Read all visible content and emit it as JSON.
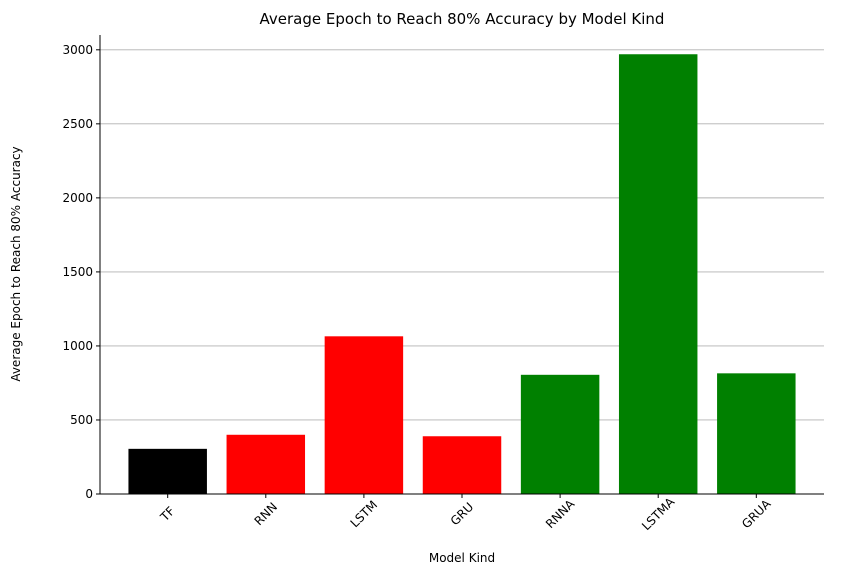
{
  "chart_data": {
    "type": "bar",
    "title": "Average Epoch to Reach 80% Accuracy by Model Kind",
    "xlabel": "Model Kind",
    "ylabel": "Average Epoch to Reach 80% Accuracy",
    "categories": [
      "TF",
      "RNN",
      "LSTM",
      "GRU",
      "RNNA",
      "LSTMA",
      "GRUA"
    ],
    "values": [
      305,
      400,
      1065,
      390,
      805,
      2970,
      815
    ],
    "colors": [
      "#000000",
      "#ff0000",
      "#ff0000",
      "#ff0000",
      "#008000",
      "#008000",
      "#008000"
    ],
    "ylim": [
      0,
      3100
    ],
    "yticks": [
      0,
      500,
      1000,
      1500,
      2000,
      2500,
      3000
    ],
    "grid": "y-axis only",
    "legend": "none"
  }
}
